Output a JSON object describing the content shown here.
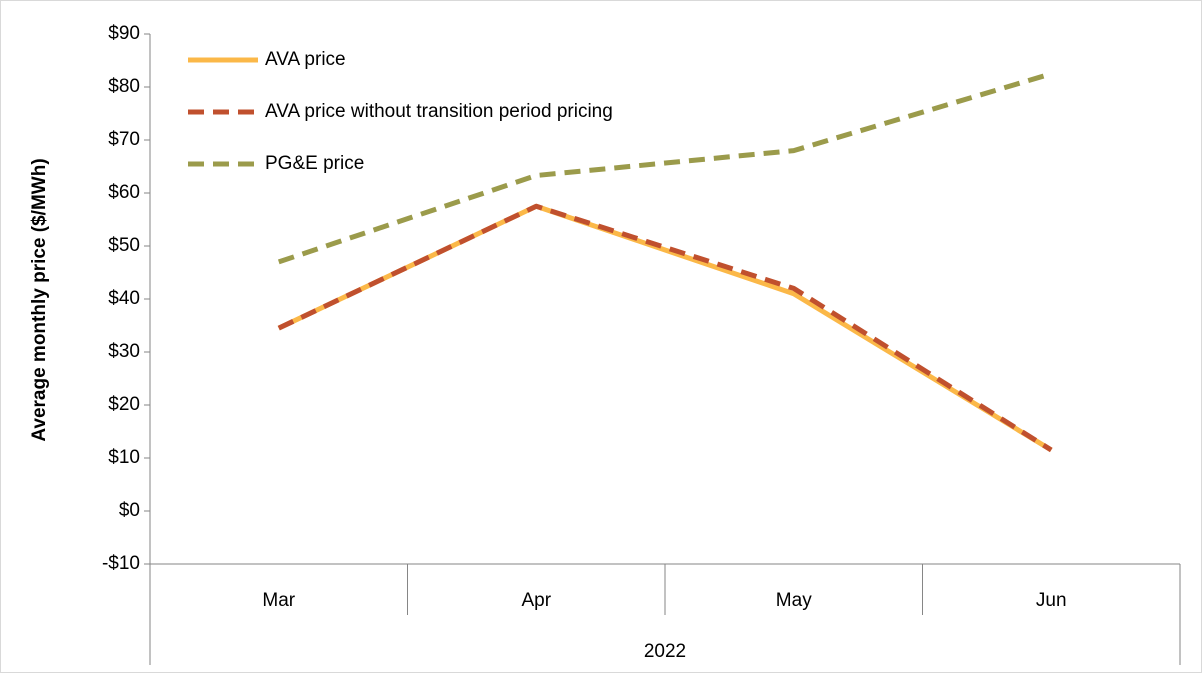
{
  "chart_data": {
    "type": "line",
    "y_label": "Average monthly price ($/MWh)",
    "categories": [
      "Mar",
      "Apr",
      "May",
      "Jun"
    ],
    "category_group": "2022",
    "series": [
      {
        "name": "AVA price",
        "color": "#fbb848",
        "dash": false,
        "values": [
          34.5,
          57.5,
          41,
          11.5
        ]
      },
      {
        "name": "AVA price without transition period pricing",
        "color": "#c0502e",
        "dash": true,
        "values": [
          34.5,
          57.5,
          42,
          11.5
        ]
      },
      {
        "name": "PG&E price",
        "color": "#9b9b4b",
        "dash": true,
        "values": [
          47,
          63.3,
          68,
          82.5
        ]
      }
    ],
    "ylim": [
      -10,
      90
    ],
    "yticks": [
      {
        "value": -10,
        "label": "-$10"
      },
      {
        "value": 0,
        "label": "$0"
      },
      {
        "value": 10,
        "label": "$10"
      },
      {
        "value": 20,
        "label": "$20"
      },
      {
        "value": 30,
        "label": "$30"
      },
      {
        "value": 40,
        "label": "$40"
      },
      {
        "value": 50,
        "label": "$50"
      },
      {
        "value": 60,
        "label": "$60"
      },
      {
        "value": 70,
        "label": "$70"
      },
      {
        "value": 80,
        "label": "$80"
      },
      {
        "value": 90,
        "label": "$90"
      }
    ],
    "grid": false,
    "legend": "top-left"
  }
}
